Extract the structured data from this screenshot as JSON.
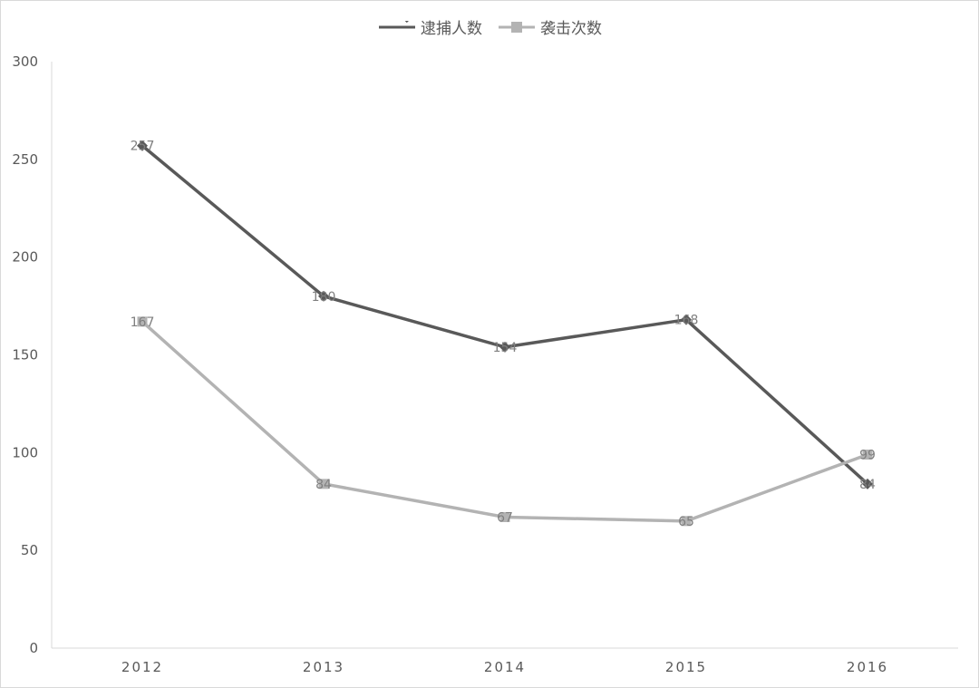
{
  "chart_data": {
    "type": "line",
    "categories": [
      "2012",
      "2013",
      "2014",
      "2015",
      "2016"
    ],
    "series": [
      {
        "name": "逮捕人数",
        "values": [
          257,
          180,
          154,
          168,
          84
        ],
        "color": "#595959",
        "marker": "diamond"
      },
      {
        "name": "袭击次数",
        "values": [
          167,
          84,
          67,
          65,
          99
        ],
        "color": "#b3b3b3",
        "marker": "square"
      }
    ],
    "ylim": [
      0,
      300
    ],
    "yticks": [
      "0",
      "50",
      "100",
      "150",
      "200",
      "250",
      "300"
    ],
    "grid": false,
    "legend_position": "top-center",
    "data_labels": true
  }
}
